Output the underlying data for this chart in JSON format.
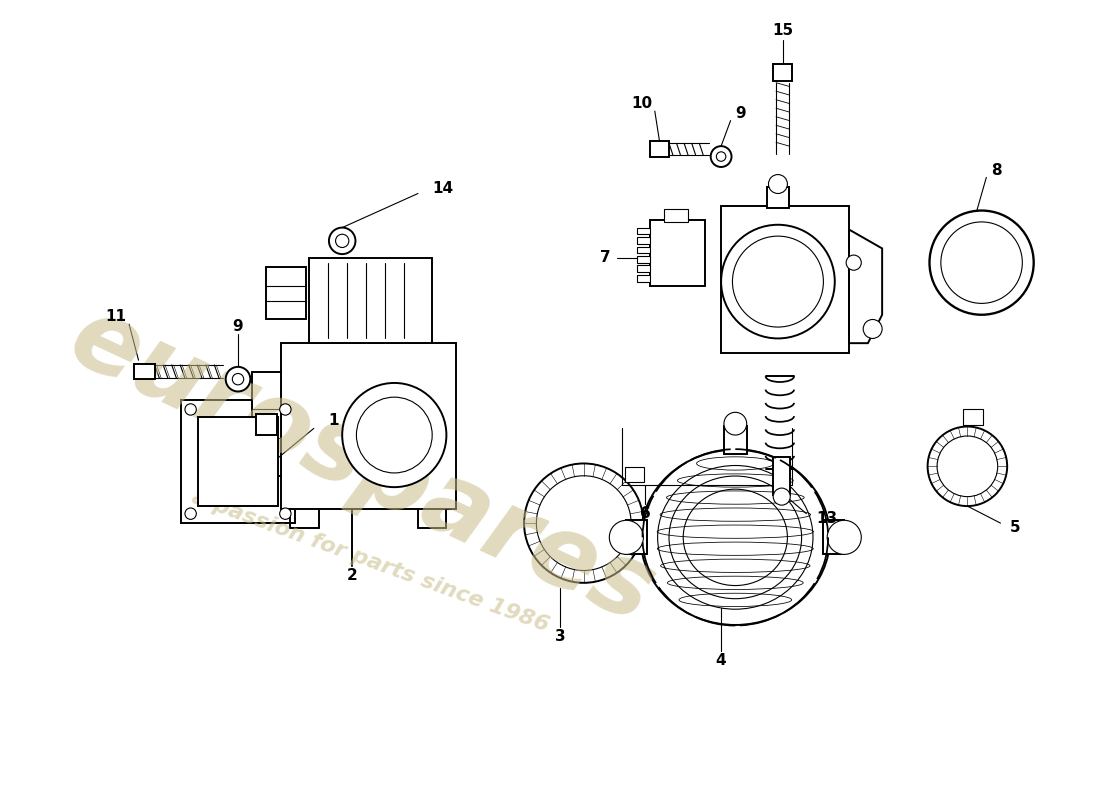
{
  "bg_color": "#ffffff",
  "line_color": "#000000",
  "lw_main": 1.4,
  "lw_thin": 0.8,
  "lw_leader": 0.8,
  "label_fontsize": 11,
  "watermark1": "eurospares",
  "watermark2": "a passion for parts since 1986",
  "wm_color": "#c8bc8a",
  "wm_alpha": 0.55
}
